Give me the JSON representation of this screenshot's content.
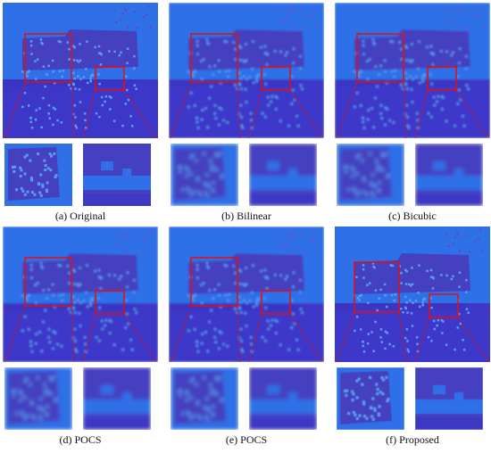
{
  "figure": {
    "panels": [
      {
        "label": "(a) Original",
        "variant": "original"
      },
      {
        "label": "(b) Bilinear",
        "variant": "blur"
      },
      {
        "label": "(c) Bicubic",
        "variant": "blur"
      },
      {
        "label": "(d) POCS",
        "variant": "blur"
      },
      {
        "label": "(e) POCS",
        "variant": "blur"
      },
      {
        "label": "(f) Proposed",
        "variant": "sharp"
      }
    ],
    "colors": {
      "sky": "#2f6fe8",
      "ground": "#3d37c9",
      "building": "#4440c0",
      "dots": "#5a9cf0",
      "roi": "#e01010"
    }
  }
}
